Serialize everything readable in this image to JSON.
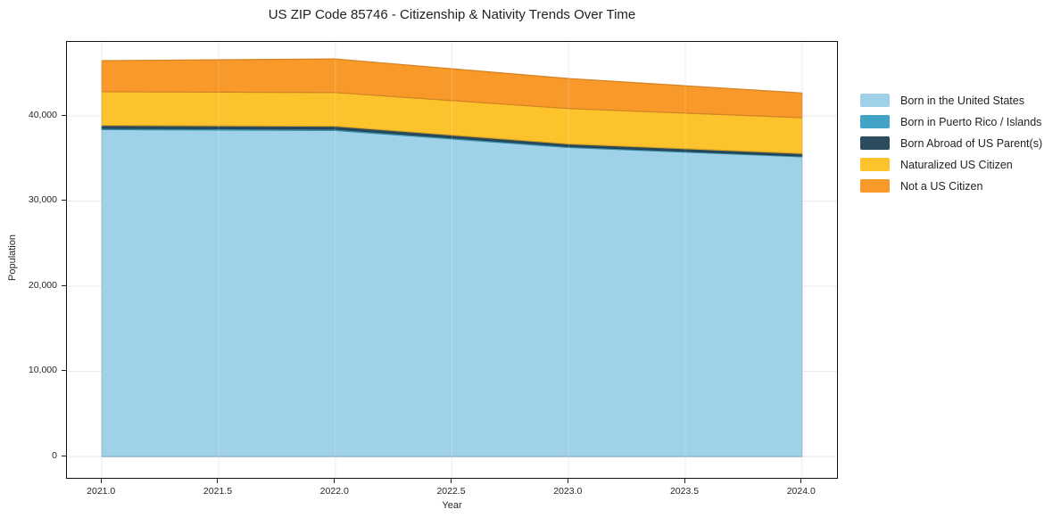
{
  "chart_data": {
    "type": "area",
    "stacked": true,
    "title": "US ZIP Code 85746 - Citizenship & Nativity Trends Over Time",
    "xlabel": "Year",
    "ylabel": "Population",
    "x": [
      2021,
      2022,
      2023,
      2024
    ],
    "series": [
      {
        "name": "Born in the United States",
        "color": "#9fd2e8",
        "values": [
          38400,
          38300,
          36300,
          35200
        ]
      },
      {
        "name": "Born in Puerto Rico / Islands",
        "color": "#41a4c7",
        "values": [
          150,
          150,
          120,
          100
        ]
      },
      {
        "name": "Born Abroad of US Parent(s)",
        "color": "#2b4b5e",
        "values": [
          350,
          350,
          300,
          300
        ]
      },
      {
        "name": "Naturalized US Citizen",
        "color": "#fdc32d",
        "values": [
          3950,
          3950,
          4150,
          4200
        ]
      },
      {
        "name": "Not a US Citizen",
        "color": "#f8992a",
        "values": [
          3650,
          3950,
          3530,
          2900
        ]
      }
    ],
    "stacked_totals": [
      46500,
      46700,
      44400,
      42700
    ],
    "x_ticks": [
      "2021.0",
      "2021.5",
      "2022.0",
      "2022.5",
      "2023.0",
      "2023.5",
      "2024.0"
    ],
    "x_tick_values": [
      2021,
      2021.5,
      2022,
      2022.5,
      2023,
      2023.5,
      2024
    ],
    "y_ticks": [
      "0",
      "10,000",
      "20,000",
      "30,000",
      "40,000"
    ],
    "y_tick_values": [
      0,
      10000,
      20000,
      30000,
      40000
    ],
    "xlim": [
      2020.85,
      2024.15
    ],
    "ylim": [
      -2500,
      48700
    ],
    "grid": true,
    "grid_color": "#e9e9e9",
    "frame_color": "#111111",
    "legend_position": "right"
  }
}
